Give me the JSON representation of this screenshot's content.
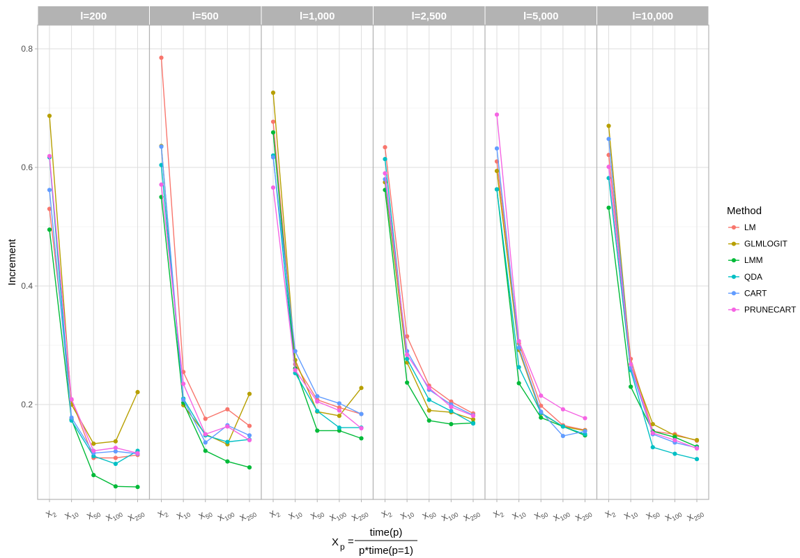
{
  "chart_data": {
    "type": "line",
    "ylabel": "Increment",
    "xlabel": {
      "lhs": "X",
      "lhs_sub": "p",
      "eq": "=",
      "numerator": "time(p)",
      "denominator": "p*time(p=1)"
    },
    "ylim": [
      0.04,
      0.84
    ],
    "yticks": [
      0.2,
      0.4,
      0.6,
      0.8
    ],
    "ytick_labels": [
      "0.2",
      "0.4",
      "0.6",
      "0.8"
    ],
    "grid": true,
    "legend": {
      "title": "Method",
      "position": "right"
    },
    "categories": [
      {
        "base": "X",
        "sub": "2"
      },
      {
        "base": "X",
        "sub": "10"
      },
      {
        "base": "X",
        "sub": "50"
      },
      {
        "base": "X",
        "sub": "100"
      },
      {
        "base": "X",
        "sub": "250"
      }
    ],
    "colors": {
      "LM": "#F8766D",
      "GLMLOGIT": "#B79F00",
      "LMM": "#00BA38",
      "QDA": "#00BFC4",
      "CART": "#619CFF",
      "PRUNECART": "#F564E3"
    },
    "methods": [
      "LM",
      "GLMLOGIT",
      "LMM",
      "QDA",
      "CART",
      "PRUNECART"
    ],
    "panels": [
      {
        "label": "l=200",
        "series": [
          {
            "name": "LM",
            "values": [
              0.53,
              0.208,
              0.11,
              0.11,
              0.115
            ]
          },
          {
            "name": "GLMLOGIT",
            "values": [
              0.687,
              0.2,
              0.134,
              0.138,
              0.221
            ]
          },
          {
            "name": "LMM",
            "values": [
              0.495,
              0.175,
              0.081,
              0.062,
              0.061
            ]
          },
          {
            "name": "QDA",
            "values": [
              0.617,
              0.173,
              0.113,
              0.1,
              0.122
            ]
          },
          {
            "name": "CART",
            "values": [
              0.562,
              0.178,
              0.118,
              0.121,
              0.117
            ]
          },
          {
            "name": "PRUNECART",
            "values": [
              0.619,
              0.209,
              0.122,
              0.127,
              0.118
            ]
          }
        ]
      },
      {
        "label": "l=500",
        "series": [
          {
            "name": "LM",
            "values": [
              0.785,
              0.255,
              0.176,
              0.192,
              0.164
            ]
          },
          {
            "name": "GLMLOGIT",
            "values": [
              0.636,
              0.199,
              0.15,
              0.133,
              0.218
            ]
          },
          {
            "name": "LMM",
            "values": [
              0.55,
              0.203,
              0.122,
              0.104,
              0.094
            ]
          },
          {
            "name": "QDA",
            "values": [
              0.604,
              0.21,
              0.148,
              0.137,
              0.141
            ]
          },
          {
            "name": "CART",
            "values": [
              0.635,
              0.208,
              0.136,
              0.165,
              0.148
            ]
          },
          {
            "name": "PRUNECART",
            "values": [
              0.571,
              0.235,
              0.15,
              0.163,
              0.14
            ]
          }
        ]
      },
      {
        "label": "l=1,000",
        "series": [
          {
            "name": "LM",
            "values": [
              0.677,
              0.268,
              0.208,
              0.195,
              0.184
            ]
          },
          {
            "name": "GLMLOGIT",
            "values": [
              0.726,
              0.275,
              0.188,
              0.181,
              0.228
            ]
          },
          {
            "name": "LMM",
            "values": [
              0.659,
              0.261,
              0.156,
              0.156,
              0.143
            ]
          },
          {
            "name": "QDA",
            "values": [
              0.62,
              0.253,
              0.189,
              0.161,
              0.161
            ]
          },
          {
            "name": "CART",
            "values": [
              0.617,
              0.29,
              0.214,
              0.202,
              0.184
            ]
          },
          {
            "name": "PRUNECART",
            "values": [
              0.566,
              0.258,
              0.205,
              0.19,
              0.16
            ]
          }
        ]
      },
      {
        "label": "l=2,500",
        "series": [
          {
            "name": "LM",
            "values": [
              0.634,
              0.315,
              0.232,
              0.205,
              0.185
            ]
          },
          {
            "name": "GLMLOGIT",
            "values": [
              0.575,
              0.271,
              0.19,
              0.187,
              0.175
            ]
          },
          {
            "name": "LMM",
            "values": [
              0.562,
              0.237,
              0.173,
              0.167,
              0.169
            ]
          },
          {
            "name": "QDA",
            "values": [
              0.614,
              0.277,
              0.208,
              0.189,
              0.168
            ]
          },
          {
            "name": "CART",
            "values": [
              0.58,
              0.29,
              0.225,
              0.2,
              0.182
            ]
          },
          {
            "name": "PRUNECART",
            "values": [
              0.59,
              0.284,
              0.228,
              0.196,
              0.181
            ]
          }
        ]
      },
      {
        "label": "l=5,000",
        "series": [
          {
            "name": "LM",
            "values": [
              0.61,
              0.303,
              0.198,
              0.165,
              0.157
            ]
          },
          {
            "name": "GLMLOGIT",
            "values": [
              0.594,
              0.292,
              0.185,
              0.163,
              0.156
            ]
          },
          {
            "name": "LMM",
            "values": [
              0.563,
              0.236,
              0.178,
              0.163,
              0.148
            ]
          },
          {
            "name": "QDA",
            "values": [
              0.563,
              0.263,
              0.186,
              0.163,
              0.15
            ]
          },
          {
            "name": "CART",
            "values": [
              0.632,
              0.296,
              0.188,
              0.147,
              0.155
            ]
          },
          {
            "name": "PRUNECART",
            "values": [
              0.689,
              0.307,
              0.215,
              0.192,
              0.177
            ]
          }
        ]
      },
      {
        "label": "l=10,000",
        "series": [
          {
            "name": "LM",
            "values": [
              0.621,
              0.277,
              0.155,
              0.15,
              0.139
            ]
          },
          {
            "name": "GLMLOGIT",
            "values": [
              0.67,
              0.268,
              0.167,
              0.148,
              0.14
            ]
          },
          {
            "name": "LMM",
            "values": [
              0.532,
              0.23,
              0.155,
              0.145,
              0.129
            ]
          },
          {
            "name": "QDA",
            "values": [
              0.582,
              0.258,
              0.128,
              0.117,
              0.108
            ]
          },
          {
            "name": "CART",
            "values": [
              0.648,
              0.262,
              0.15,
              0.136,
              0.127
            ]
          },
          {
            "name": "PRUNECART",
            "values": [
              0.601,
              0.268,
              0.152,
              0.14,
              0.126
            ]
          }
        ]
      }
    ]
  }
}
